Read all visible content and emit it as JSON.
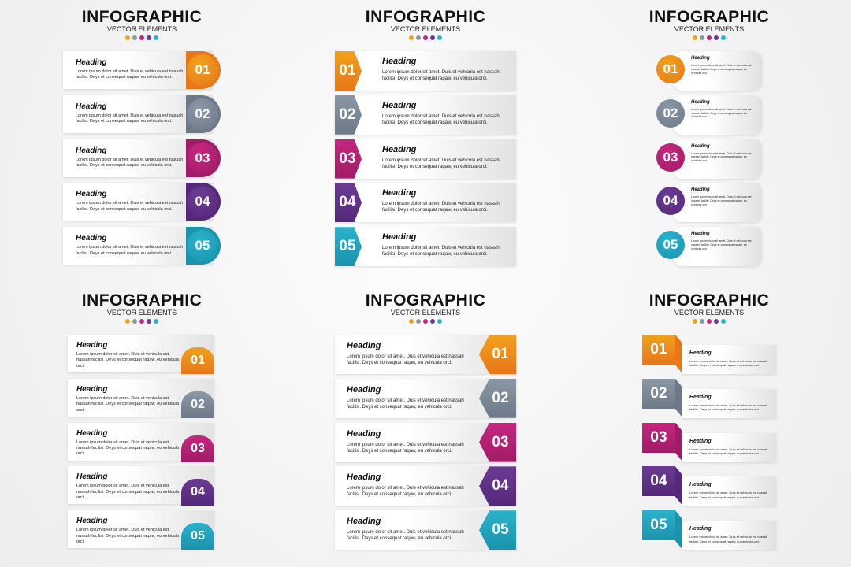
{
  "title": "INFOGRAPHIC",
  "subtitle": "VECTOR ELEMENTS",
  "colors": [
    "#f0a11c",
    "#8a97a6",
    "#c5277f",
    "#6b3b94",
    "#2bb2cc"
  ],
  "dark_colors": [
    "#e8771a",
    "#6d7987",
    "#a01c66",
    "#54287a",
    "#1a93ad"
  ],
  "items": [
    {
      "number": "01",
      "heading": "Heading",
      "text": "Lorem ipsum dolor sit amet. Duis et vehicula est nassah facilisi. Deys et consequat raqaw, eu vehicula orci."
    },
    {
      "number": "02",
      "heading": "Heading",
      "text": "Lorem ipsum dolor sit amet. Duis et vehicula est nassah facilisi. Deys et consequat raqaw, eu vehicula orci."
    },
    {
      "number": "03",
      "heading": "Heading",
      "text": "Lorem ipsum dolor sit amet. Duis et vehicula est nassah facilisi. Deys et consequat raqaw, eu vehicula orci."
    },
    {
      "number": "04",
      "heading": "Heading",
      "text": "Lorem ipsum dolor sit amet. Duis et vehicula est nassah facilisi. Deys et consequat raqaw, eu vehicula orci."
    },
    {
      "number": "05",
      "heading": "Heading",
      "text": "Lorem ipsum dolor sit amet. Duis et vehicula est nassah facilisi. Deys et consequat raqaw, eu vehicula orci."
    }
  ],
  "panels": [
    "circle-right",
    "tag-left",
    "circle-left",
    "tab-right",
    "arrow-right",
    "square-left"
  ]
}
